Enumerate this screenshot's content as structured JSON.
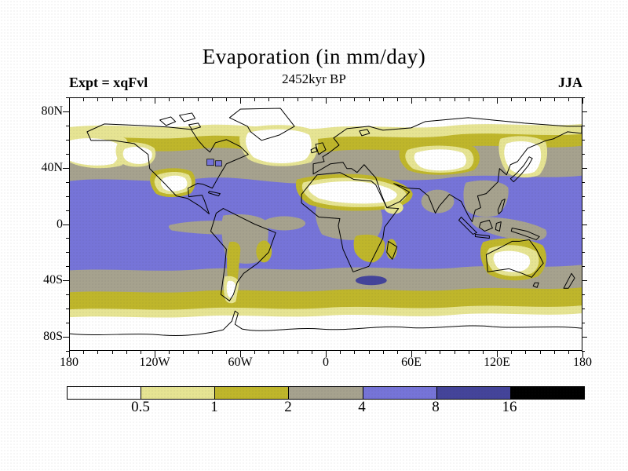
{
  "header": {
    "title": "Evaporation (in mm/day)",
    "subtitle": "2452kyr BP",
    "experiment_label": "Expt = xqFvl",
    "season_label": "JJA"
  },
  "map_axes": {
    "lat_ticks": [
      {
        "label": "80N",
        "lat": 80
      },
      {
        "label": "40N",
        "lat": 40
      },
      {
        "label": "0",
        "lat": 0
      },
      {
        "label": "40S",
        "lat": -40
      },
      {
        "label": "80S",
        "lat": -80
      }
    ],
    "lon_ticks": [
      {
        "label": "180",
        "lon": -180
      },
      {
        "label": "120W",
        "lon": -120
      },
      {
        "label": "60W",
        "lon": -60
      },
      {
        "label": "0",
        "lon": 0
      },
      {
        "label": "60E",
        "lon": 60
      },
      {
        "label": "120E",
        "lon": 120
      },
      {
        "label": "180",
        "lon": 180
      }
    ],
    "minor_tick_interval_deg": 10,
    "lon_major_every_deg": 60,
    "lat_major_every_deg": 40
  },
  "colorbar": {
    "boundary_labels": [
      "0.5",
      "1",
      "2",
      "4",
      "8",
      "16"
    ],
    "segment_colors": [
      "#ffffff",
      "#e6e493",
      "#bfb62b",
      "#a6a28e",
      "#7674d8",
      "#44449a",
      "#000000"
    ]
  },
  "chart_data": {
    "type": "heatmap",
    "subtype": "filled-contour global map",
    "title": "Evaporation (in mm/day)",
    "variable": "Evaporation",
    "units": "mm/day",
    "experiment": "xqFvl",
    "time_label": "2452kyr BP",
    "season": "JJA",
    "lon_range": [
      -180,
      180
    ],
    "lat_range": [
      -90,
      90
    ],
    "contour_levels": [
      0.5,
      1,
      2,
      4,
      8,
      16
    ],
    "level_colors": [
      {
        "range": "< 0.5",
        "color": "#ffffff"
      },
      {
        "range": "0.5 - 1",
        "color": "#e6e493"
      },
      {
        "range": "1 - 2",
        "color": "#bfb62b"
      },
      {
        "range": "2 - 4",
        "color": "#a6a28e"
      },
      {
        "range": "4 - 8",
        "color": "#7674d8"
      },
      {
        "range": "8 - 16",
        "color": "#44449a"
      },
      {
        "range": "> 16",
        "color": "#000000"
      }
    ],
    "zonal_pattern": [
      {
        "lat_band": "90N-72N",
        "value_mm_day": "< 0.5"
      },
      {
        "lat_band": "72N-64N",
        "value_mm_day": "0.5 - 1"
      },
      {
        "lat_band": "64N-54N",
        "value_mm_day": "1 - 2"
      },
      {
        "lat_band": "54N-33N",
        "value_mm_day": "2 - 4"
      },
      {
        "lat_band": "33N-32S (oceans)",
        "value_mm_day": "4 - 8"
      },
      {
        "lat_band": "equatorial east Pacific and equatorial continents",
        "value_mm_day": "2 - 4"
      },
      {
        "lat_band": "32S-48S",
        "value_mm_day": "2 - 4"
      },
      {
        "lat_band": "48S-60S",
        "value_mm_day": "1 - 2"
      },
      {
        "lat_band": "60S-66S",
        "value_mm_day": "0.5 - 1"
      },
      {
        "lat_band": "66S-90S (Antarctica)",
        "value_mm_day": "< 0.5"
      }
    ],
    "notable_features": [
      "Dry cores (< 0.5 mm/day) over the Sahara and Arabia, central Asia, southwest North America, interior Australia, Patagonia, Greenland and both polar caps",
      "High evaporation (4-8 mm/day) across the subtropical and tropical oceans",
      "Small 8-16 mm/day patch in the southwest Indian Ocean south of the Cape / Madagascar",
      "Reduced values (2-4 mm/day) along the equatorial east Pacific and over equatorial land (Amazon, Congo, Maritime Continent)",
      "Low-evaporation (< 1 mm/day) pools over the northern North Atlantic, Nordic seas and North Pacific"
    ],
    "legend_position": "bottom horizontal colorbar",
    "grid": false
  }
}
